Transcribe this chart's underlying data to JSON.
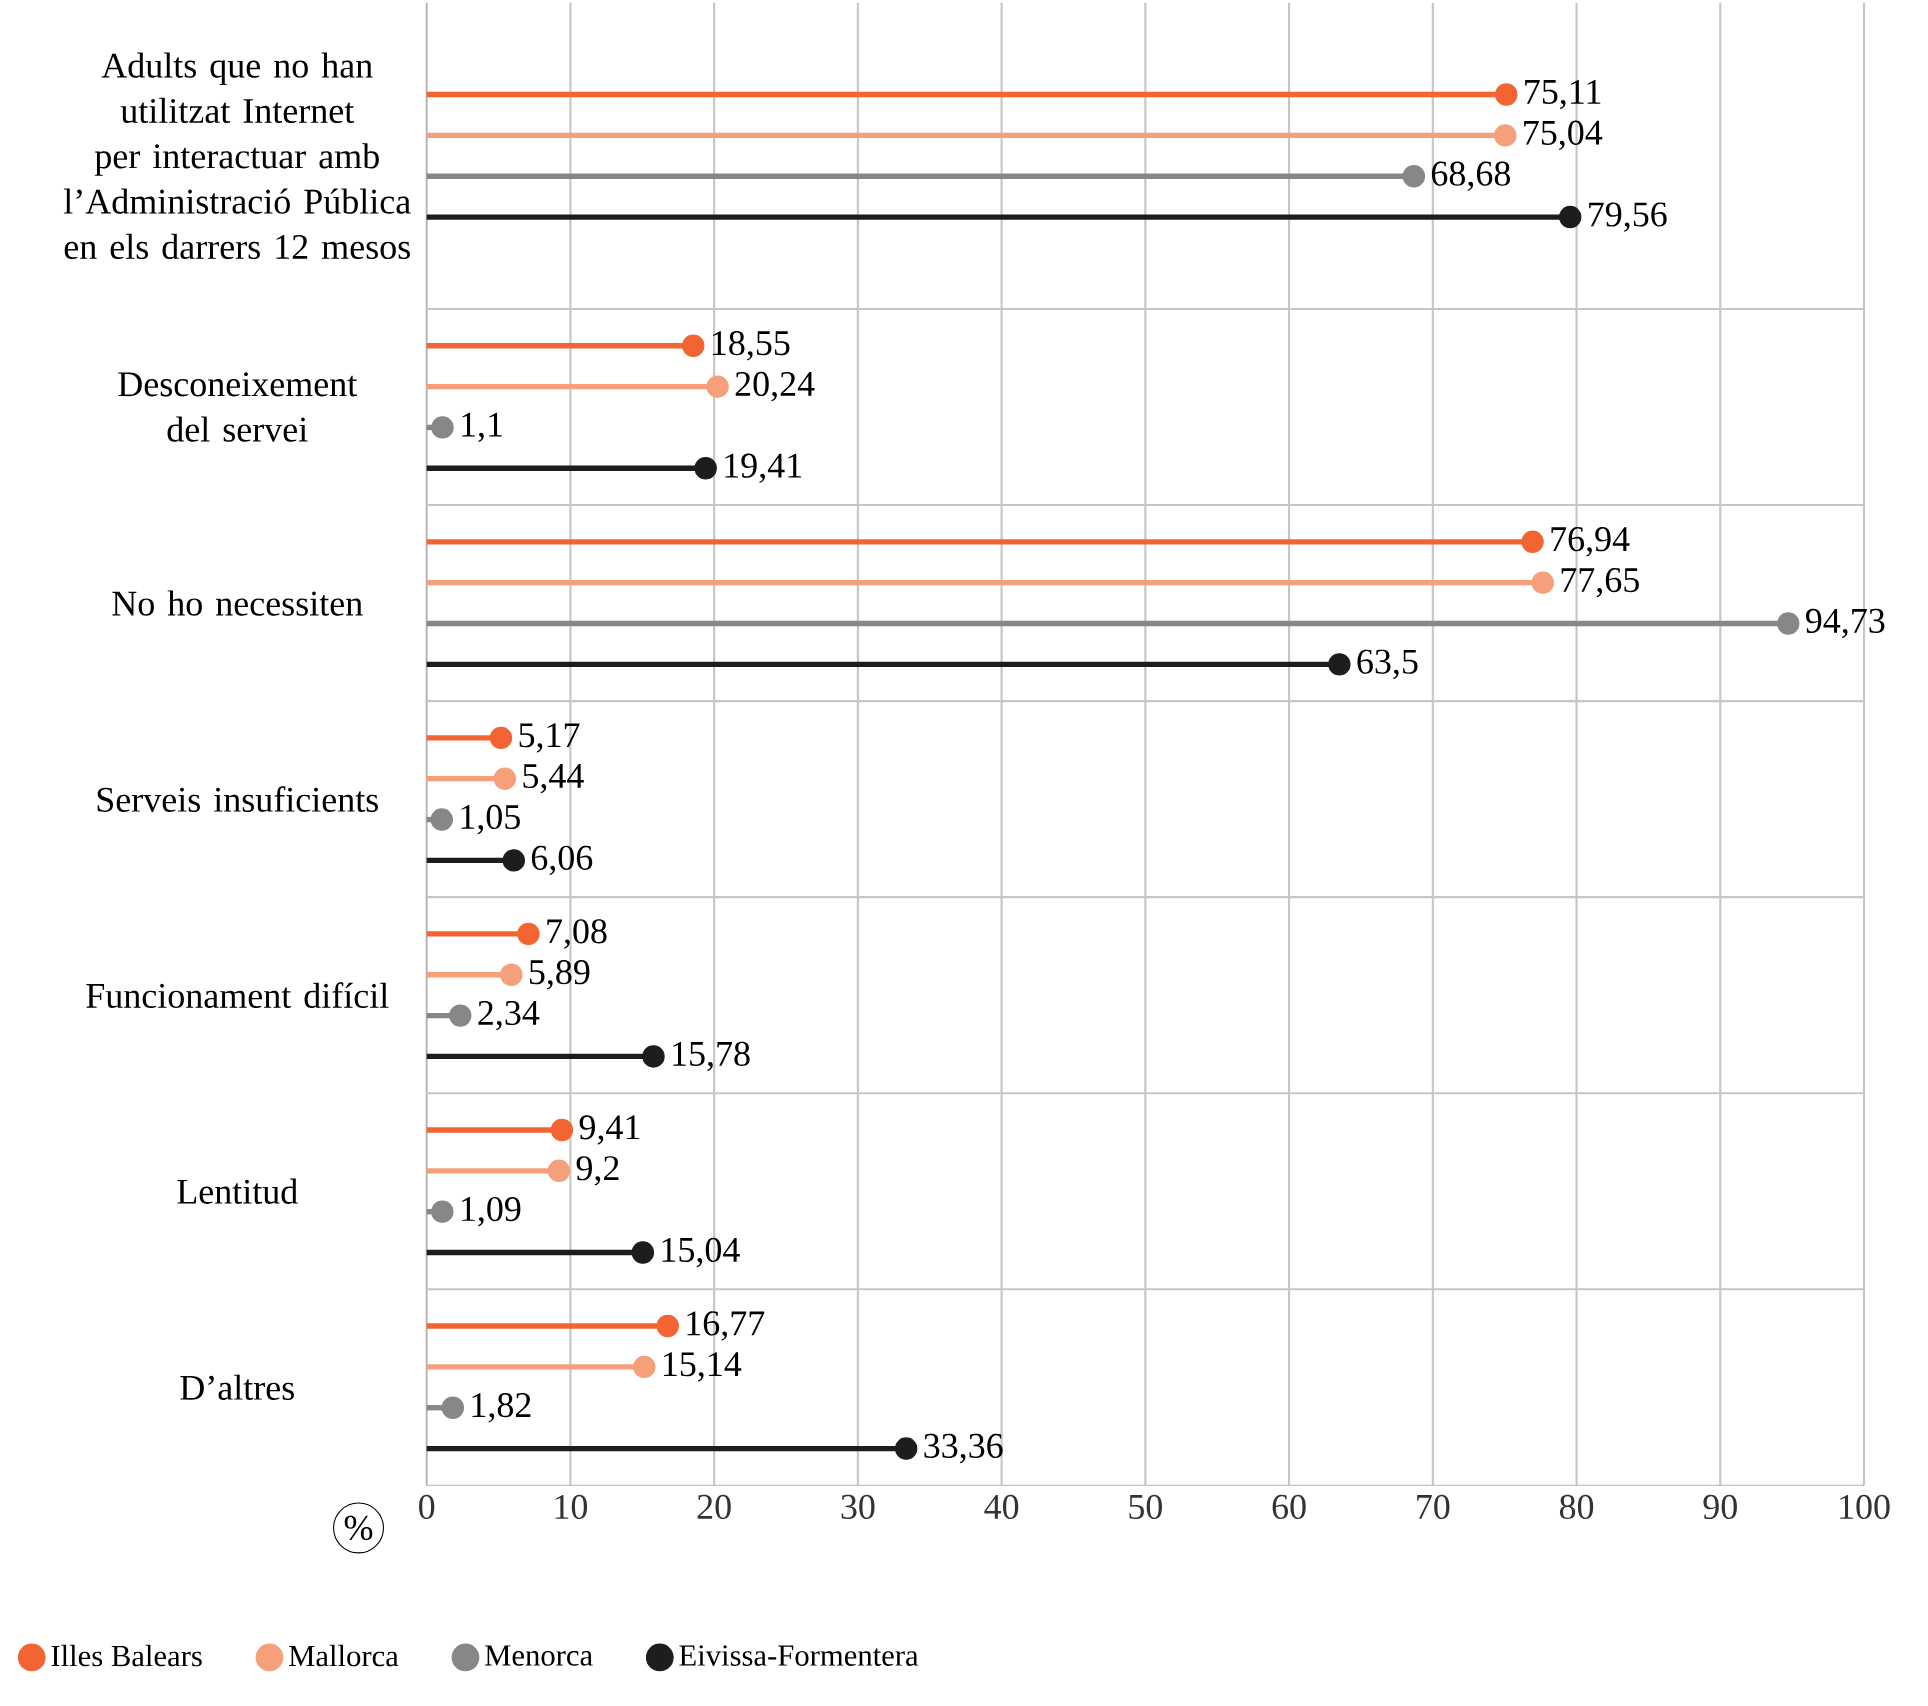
{
  "chart_data": {
    "type": "lollipop",
    "orientation": "horizontal",
    "xlabel": "%",
    "categories": [
      "Adults que no han utilitzat Internet per interactuar amb l’Administració Pública en els darrers 12 mesos",
      "Desconeixement del servei",
      "No ho necessiten",
      "Serveis insuficients",
      "Funcionament difícil",
      "Lentitud",
      "D’altres"
    ],
    "series": [
      {
        "name": "Illes Balears",
        "color": "#f26532",
        "values": [
          75.11,
          18.55,
          76.94,
          5.17,
          7.08,
          9.41,
          16.77
        ],
        "value_labels": [
          "75,11",
          "18,55",
          "76,94",
          "5,17",
          "7,08",
          "9,41",
          "16,77"
        ]
      },
      {
        "name": "Mallorca",
        "color": "#f5a07a",
        "values": [
          75.04,
          20.24,
          77.65,
          5.44,
          5.89,
          9.2,
          15.14
        ],
        "value_labels": [
          "75,04",
          "20,24",
          "77,65",
          "5,44",
          "5,89",
          "9,2",
          "15,14"
        ]
      },
      {
        "name": "Menorca",
        "color": "#878787",
        "values": [
          68.68,
          1.1,
          94.73,
          1.05,
          2.34,
          1.09,
          1.82
        ],
        "value_labels": [
          "68,68",
          "1,1",
          "94,73",
          "1,05",
          "2,34",
          "1,09",
          "1,82"
        ]
      },
      {
        "name": "Eivissa-Formentera",
        "color": "#1d1d1b",
        "values": [
          79.56,
          19.41,
          63.5,
          6.06,
          15.78,
          15.04,
          33.36
        ],
        "value_labels": [
          "79,56",
          "19,41",
          "63,5",
          "6,06",
          "15,78",
          "15,04",
          "33,36"
        ]
      }
    ],
    "xlim": [
      0,
      100
    ],
    "xticks": [
      0,
      10,
      20,
      30,
      40,
      50,
      60,
      70,
      80,
      90,
      100
    ],
    "grid": "x",
    "legend": "bottom",
    "marker": "circle"
  }
}
